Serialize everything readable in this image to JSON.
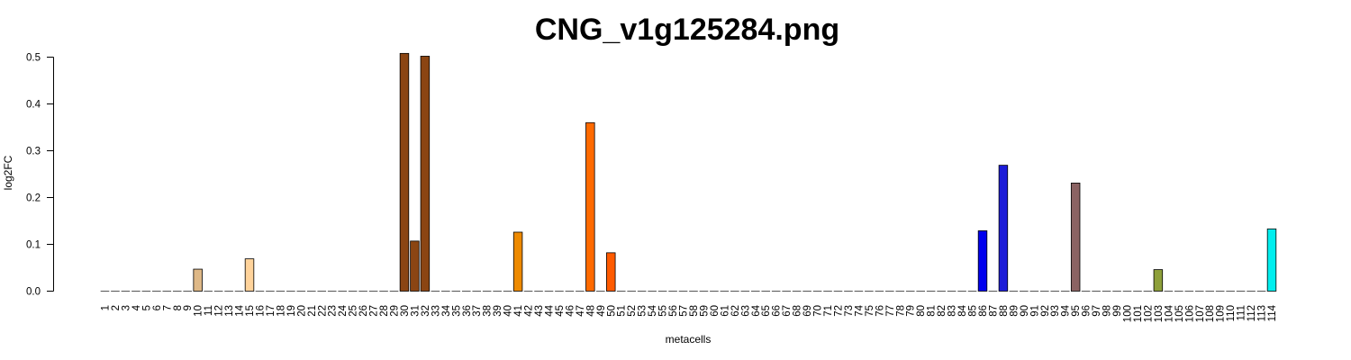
{
  "chart_data": {
    "type": "bar",
    "title": "CNG_v1g125284.png",
    "xlabel": "metacells",
    "ylabel": "log2FC",
    "ylim": [
      0,
      0.5
    ],
    "y_ticks": [
      "0.0",
      "0.1",
      "0.2",
      "0.3",
      "0.4",
      "0.5"
    ],
    "categories": [
      "1",
      "2",
      "3",
      "4",
      "5",
      "6",
      "7",
      "8",
      "9",
      "10",
      "11",
      "12",
      "13",
      "14",
      "15",
      "16",
      "17",
      "18",
      "19",
      "20",
      "21",
      "22",
      "23",
      "24",
      "25",
      "26",
      "27",
      "28",
      "29",
      "30",
      "31",
      "32",
      "33",
      "34",
      "35",
      "36",
      "37",
      "38",
      "39",
      "40",
      "41",
      "42",
      "43",
      "44",
      "45",
      "46",
      "47",
      "48",
      "49",
      "50",
      "51",
      "52",
      "53",
      "54",
      "55",
      "56",
      "57",
      "58",
      "59",
      "60",
      "61",
      "62",
      "63",
      "64",
      "65",
      "66",
      "67",
      "68",
      "69",
      "70",
      "71",
      "72",
      "73",
      "74",
      "75",
      "76",
      "77",
      "78",
      "79",
      "80",
      "81",
      "82",
      "83",
      "84",
      "85",
      "86",
      "87",
      "88",
      "89",
      "90",
      "91",
      "92",
      "93",
      "94",
      "95",
      "96",
      "97",
      "98",
      "99",
      "100",
      "101",
      "102",
      "103",
      "104",
      "105",
      "106",
      "107",
      "108",
      "109",
      "110",
      "111",
      "112",
      "113",
      "114"
    ],
    "values": [
      0,
      0,
      0,
      0,
      0,
      0,
      0,
      0,
      0,
      0.047,
      0,
      0,
      0,
      0,
      0.069,
      0,
      0,
      0,
      0,
      0,
      0,
      0,
      0,
      0,
      0,
      0,
      0,
      0,
      0,
      0.508,
      0.107,
      0.502,
      0,
      0,
      0,
      0,
      0,
      0,
      0,
      0,
      0.126,
      0,
      0,
      0,
      0,
      0,
      0,
      0.36,
      0,
      0.082,
      0,
      0,
      0,
      0,
      0,
      0,
      0,
      0,
      0,
      0,
      0,
      0,
      0,
      0,
      0,
      0,
      0,
      0,
      0,
      0,
      0,
      0,
      0,
      0,
      0,
      0,
      0,
      0,
      0,
      0,
      0,
      0,
      0,
      0,
      0,
      0.129,
      0,
      0.269,
      0,
      0,
      0,
      0,
      0,
      0,
      0.231,
      0,
      0,
      0,
      0,
      0,
      0,
      0,
      0.046,
      0,
      0,
      0,
      0,
      0,
      0,
      0,
      0,
      0,
      0,
      0.133
    ],
    "bar_colors": {
      "10": "#DEB887",
      "15": "#FFD39B",
      "30": "#8B4513",
      "31": "#8B4513",
      "32": "#8B4513",
      "41": "#EE8A00",
      "48": "#FF6A00",
      "50": "#FF5A00",
      "86": "#0000EE",
      "88": "#1C1CD8",
      "95": "#8B6363",
      "103": "#8EA03A",
      "114": "#00EEEE"
    },
    "default_color": "#BEBEBE",
    "grid": false
  }
}
